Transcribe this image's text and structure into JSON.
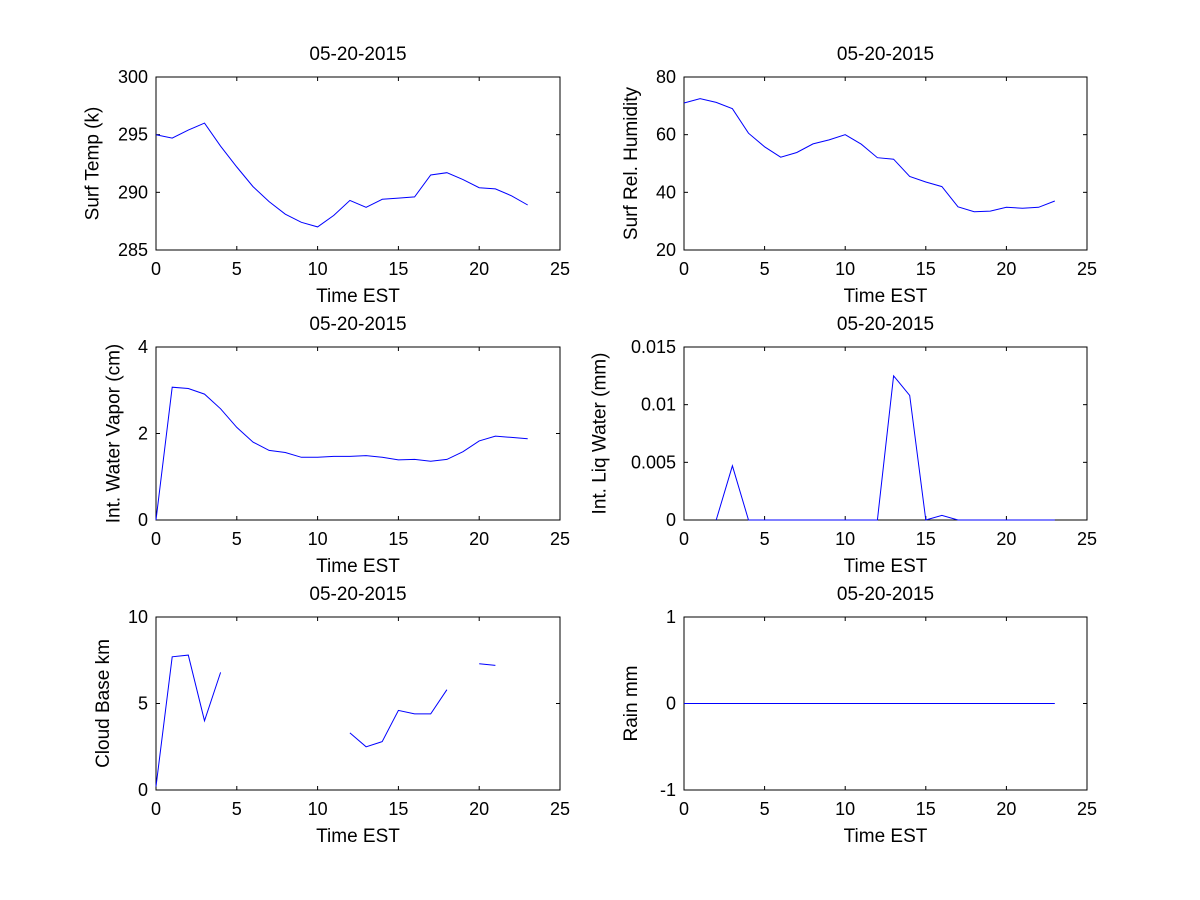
{
  "figure": {
    "background": "#ffffff",
    "line_color": "#0000ff"
  },
  "chart_data": [
    {
      "type": "line",
      "title": "05-20-2015",
      "xlabel": "Time EST",
      "ylabel": "Surf Temp (k)",
      "xlim": [
        0,
        25
      ],
      "ylim": [
        285,
        300
      ],
      "xticks": [
        0,
        5,
        10,
        15,
        20,
        25
      ],
      "yticks": [
        285,
        290,
        295,
        300
      ],
      "grid": false,
      "series": [
        {
          "x": [
            0,
            1,
            2,
            3,
            4,
            5,
            6,
            7,
            8,
            9,
            10,
            11,
            12,
            13,
            14,
            15,
            16,
            17,
            18,
            19,
            20,
            21,
            22,
            23
          ],
          "y": [
            295.0,
            294.7,
            295.4,
            296.0,
            294.0,
            292.2,
            290.5,
            289.2,
            288.1,
            287.4,
            287.0,
            288.0,
            289.3,
            288.7,
            289.4,
            289.5,
            289.6,
            291.5,
            291.7,
            291.1,
            290.4,
            290.3,
            289.7,
            288.9
          ]
        }
      ]
    },
    {
      "type": "line",
      "title": "05-20-2015",
      "xlabel": "Time EST",
      "ylabel": "Surf Rel. Humidity",
      "xlim": [
        0,
        25
      ],
      "ylim": [
        20,
        80
      ],
      "xticks": [
        0,
        5,
        10,
        15,
        20,
        25
      ],
      "yticks": [
        20,
        40,
        60,
        80
      ],
      "grid": false,
      "series": [
        {
          "x": [
            0,
            1,
            2,
            3,
            4,
            5,
            6,
            7,
            8,
            9,
            10,
            11,
            12,
            13,
            14,
            15,
            16,
            17,
            18,
            19,
            20,
            21,
            22,
            23
          ],
          "y": [
            71.0,
            72.5,
            71.2,
            69.0,
            60.5,
            55.8,
            52.2,
            53.8,
            56.8,
            58.2,
            60.0,
            56.7,
            52.0,
            51.5,
            45.5,
            43.6,
            42.0,
            35.0,
            33.3,
            33.5,
            34.8,
            34.5,
            34.8,
            37.0
          ]
        }
      ]
    },
    {
      "type": "line",
      "title": "05-20-2015",
      "xlabel": "Time EST",
      "ylabel": "Int. Water Vapor (cm)",
      "xlim": [
        0,
        25
      ],
      "ylim": [
        0,
        4
      ],
      "xticks": [
        0,
        5,
        10,
        15,
        20,
        25
      ],
      "yticks": [
        0,
        2,
        4
      ],
      "grid": false,
      "series": [
        {
          "x": [
            0,
            1,
            2,
            3,
            4,
            5,
            6,
            7,
            8,
            9,
            10,
            11,
            12,
            13,
            14,
            15,
            16,
            17,
            18,
            19,
            20,
            21,
            22,
            23
          ],
          "y": [
            0.0,
            3.07,
            3.04,
            2.91,
            2.57,
            2.14,
            1.8,
            1.61,
            1.56,
            1.45,
            1.45,
            1.47,
            1.47,
            1.49,
            1.45,
            1.39,
            1.4,
            1.36,
            1.4,
            1.58,
            1.83,
            1.94,
            1.91,
            1.88
          ]
        }
      ]
    },
    {
      "type": "line",
      "title": "05-20-2015",
      "xlabel": "Time EST",
      "ylabel": "Int. Liq Water (mm)",
      "xlim": [
        0,
        25
      ],
      "ylim": [
        0,
        0.015
      ],
      "xticks": [
        0,
        5,
        10,
        15,
        20,
        25
      ],
      "yticks": [
        0,
        0.005,
        0.01,
        0.015
      ],
      "grid": false,
      "series": [
        {
          "x": [
            2,
            3,
            4,
            5,
            6,
            7,
            8,
            9,
            10,
            11,
            12,
            13,
            14,
            15,
            16,
            17,
            18,
            19,
            20,
            21,
            22,
            23
          ],
          "y": [
            0.0,
            0.0047,
            0.0,
            0.0,
            0.0,
            0.0,
            0.0,
            0.0,
            0.0,
            0.0,
            0.0,
            0.0125,
            0.0108,
            0.0,
            0.0004,
            0.0,
            0.0,
            0.0,
            0.0,
            0.0,
            0.0,
            0.0
          ]
        }
      ]
    },
    {
      "type": "line",
      "title": "05-20-2015",
      "xlabel": "Time EST",
      "ylabel": "Cloud Base km",
      "xlim": [
        0,
        25
      ],
      "ylim": [
        0,
        10
      ],
      "xticks": [
        0,
        5,
        10,
        15,
        20,
        25
      ],
      "yticks": [
        0,
        5,
        10
      ],
      "grid": false,
      "series": [
        {
          "x": [
            0,
            1,
            2,
            3,
            4,
            5,
            6,
            7,
            8,
            9,
            10,
            11,
            12,
            13,
            14,
            15,
            16,
            17,
            18,
            19,
            20,
            21,
            22,
            23
          ],
          "y": [
            0.2,
            7.7,
            7.8,
            4.0,
            6.8,
            null,
            null,
            null,
            null,
            null,
            null,
            null,
            3.3,
            2.5,
            2.8,
            4.6,
            4.4,
            4.4,
            5.8,
            null,
            7.3,
            7.2,
            null,
            null
          ]
        }
      ]
    },
    {
      "type": "line",
      "title": "05-20-2015",
      "xlabel": "Time EST",
      "ylabel": "Rain mm",
      "xlim": [
        0,
        25
      ],
      "ylim": [
        -1,
        1
      ],
      "xticks": [
        0,
        5,
        10,
        15,
        20,
        25
      ],
      "yticks": [
        -1,
        0,
        1
      ],
      "grid": false,
      "series": [
        {
          "x": [
            0,
            1,
            2,
            3,
            4,
            5,
            6,
            7,
            8,
            9,
            10,
            11,
            12,
            13,
            14,
            15,
            16,
            17,
            18,
            19,
            20,
            21,
            22,
            23
          ],
          "y": [
            0,
            0,
            0,
            0,
            0,
            0,
            0,
            0,
            0,
            0,
            0,
            0,
            0,
            0,
            0,
            0,
            0,
            0,
            0,
            0,
            0,
            0,
            0,
            0
          ]
        }
      ]
    }
  ]
}
